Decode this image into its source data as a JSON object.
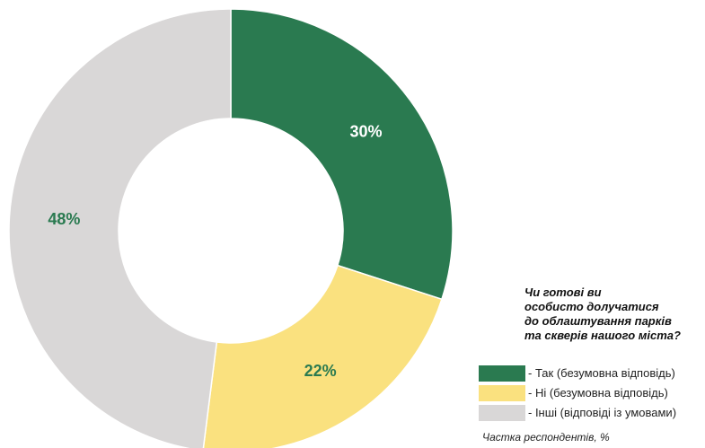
{
  "chart_data": {
    "type": "pie",
    "question": "Чи готові ви\nособисто долучатися\nдо облаштування парків\nта скверів нашого міста?",
    "slices": [
      {
        "label": "- Так (безумовна відповідь)",
        "value": 30,
        "value_label": "30%",
        "color": "#2a7a50",
        "label_color": "#ffffff"
      },
      {
        "label": "- Ні (безумовна відповідь)",
        "value": 22,
        "value_label": "22%",
        "color": "#fae17f",
        "label_color": "#2a7a50"
      },
      {
        "label": "- Інші (відповіді із умовами)",
        "value": 48,
        "value_label": "48%",
        "color": "#d9d7d7",
        "label_color": "#2a7a50"
      }
    ],
    "note": "Частка респондентів, %"
  }
}
